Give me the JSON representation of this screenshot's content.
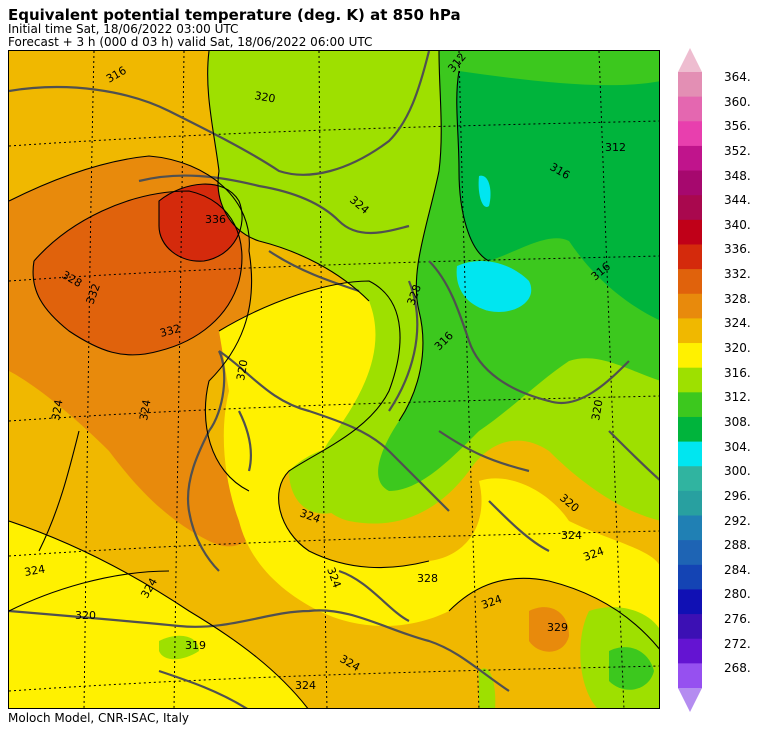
{
  "header": {
    "title": "Equivalent potential temperature (deg. K) at 850 hPa",
    "initial_time": "Initial time  Sat, 18/06/2022  03:00 UTC",
    "forecast": "Forecast  +   3 h  (000 d 03 h)  valid Sat, 18/06/2022 06:00 UTC"
  },
  "footer": "Moloch Model, CNR-ISAC, Italy",
  "colorbar": {
    "levels": [
      "364.",
      "360.",
      "356.",
      "352.",
      "348.",
      "344.",
      "340.",
      "336.",
      "332.",
      "328.",
      "324.",
      "320.",
      "316.",
      "312.",
      "308.",
      "304.",
      "300.",
      "296.",
      "292.",
      "288.",
      "284.",
      "280.",
      "276.",
      "272.",
      "268."
    ],
    "colors": [
      "#e38fb4",
      "#e467b0",
      "#e83fae",
      "#c0148c",
      "#a6086e",
      "#a9084e",
      "#c00018",
      "#d42a0c",
      "#e0620c",
      "#e88a0c",
      "#f0b800",
      "#fff100",
      "#9ee000",
      "#3cc81e",
      "#00b43c",
      "#00e6f0",
      "#30b4a0",
      "#28a0a0",
      "#2080b4",
      "#1e64b4",
      "#1444b4",
      "#1010b4",
      "#3c10b4",
      "#6414d2",
      "#9650f0"
    ],
    "arrow_top_color": "#eebdd0",
    "arrow_bottom_color": "#b48cf0"
  },
  "map": {
    "contour_labels": [
      {
        "text": "316"
      },
      {
        "text": "320"
      },
      {
        "text": "312"
      },
      {
        "text": "312"
      },
      {
        "text": "316"
      },
      {
        "text": "336"
      },
      {
        "text": "324"
      },
      {
        "text": "328"
      },
      {
        "text": "332"
      },
      {
        "text": "332"
      },
      {
        "text": "316"
      },
      {
        "text": "316"
      },
      {
        "text": "328"
      },
      {
        "text": "320"
      },
      {
        "text": "324"
      },
      {
        "text": "320"
      },
      {
        "text": "324"
      },
      {
        "text": "320"
      },
      {
        "text": "324"
      },
      {
        "text": "324"
      },
      {
        "text": "324"
      },
      {
        "text": "324"
      },
      {
        "text": "328"
      },
      {
        "text": "324"
      },
      {
        "text": "329"
      },
      {
        "text": "320"
      },
      {
        "text": "319"
      },
      {
        "text": "324"
      },
      {
        "text": "324"
      },
      {
        "text": "324"
      },
      {
        "text": "324"
      }
    ]
  }
}
